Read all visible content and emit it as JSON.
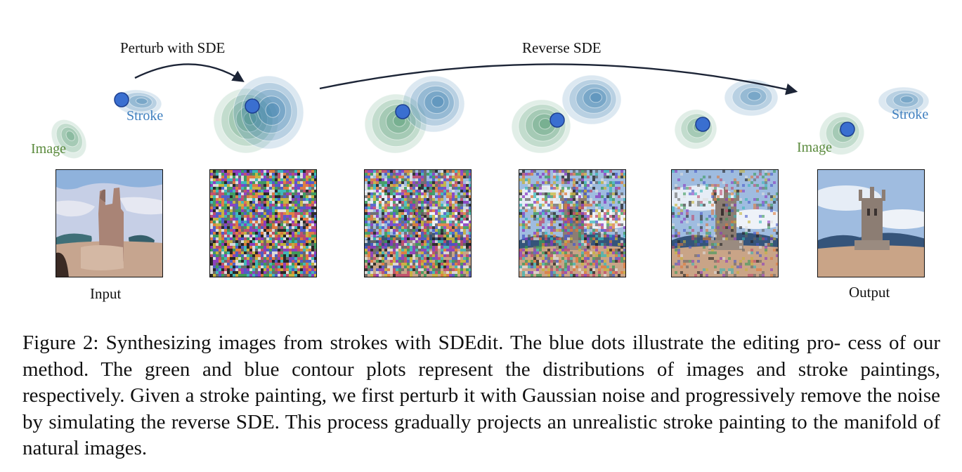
{
  "figure": {
    "arrow_labels": {
      "perturb": "Perturb with SDE",
      "reverse": "Reverse SDE"
    },
    "legend": {
      "left_image": "Image",
      "left_stroke": "Stroke",
      "right_image": "Image",
      "right_stroke": "Stroke"
    },
    "panel_labels": {
      "input": "Input",
      "output": "Output"
    },
    "colors": {
      "image_distribution": "#5a9e78",
      "stroke_distribution": "#3f82b0",
      "dot": "#3a6fd0",
      "image_label": "#5a8a3c",
      "stroke_label": "#3f7fbf"
    },
    "panels": [
      {
        "name": "input-stroke-painting",
        "noise_level": 0.0
      },
      {
        "name": "perturbed-noise-full",
        "noise_level": 1.0
      },
      {
        "name": "denoise-step-1",
        "noise_level": 0.85
      },
      {
        "name": "denoise-step-2",
        "noise_level": 0.6
      },
      {
        "name": "denoise-step-3",
        "noise_level": 0.3
      },
      {
        "name": "output-natural-image",
        "noise_level": 0.0
      }
    ]
  },
  "caption": {
    "text": "Figure 2: Synthesizing images from strokes with SDEdit. The blue dots illustrate the editing pro- cess of our method. The green and blue contour plots represent the distributions of images and stroke paintings, respectively. Given a stroke painting, we first perturb it with Gaussian noise and progressively remove the noise by simulating the reverse SDE. This process gradually projects an unrealistic stroke painting to the manifold of natural images."
  }
}
